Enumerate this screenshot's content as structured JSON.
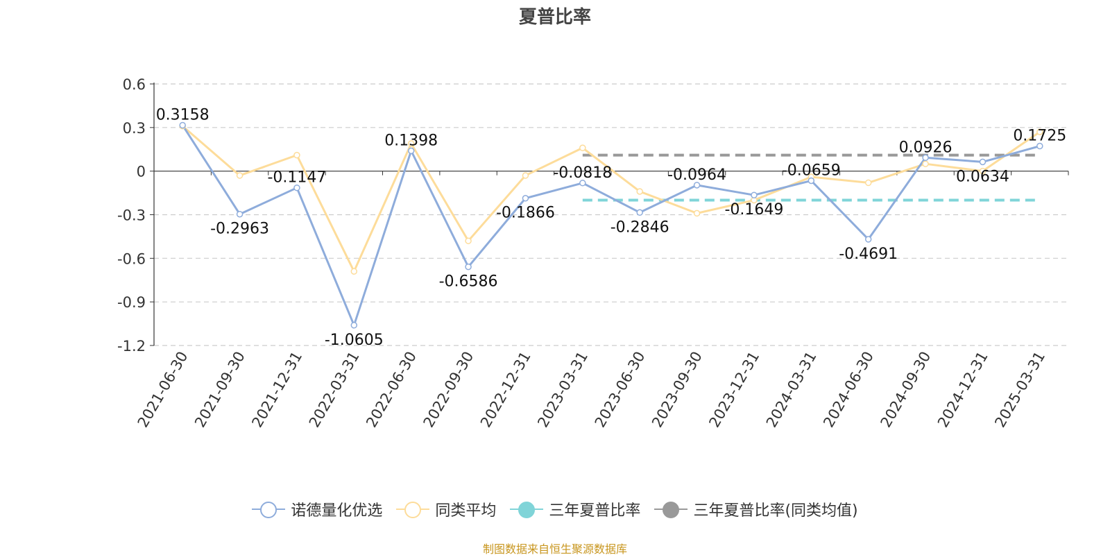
{
  "chart_data": {
    "type": "line",
    "title": "夏普比率",
    "categories": [
      "2021-06-30",
      "2021-09-30",
      "2021-12-31",
      "2022-03-31",
      "2022-06-30",
      "2022-09-30",
      "2022-12-31",
      "2023-03-31",
      "2023-06-30",
      "2023-09-30",
      "2023-12-31",
      "2024-03-31",
      "2024-06-30",
      "2024-09-30",
      "2024-12-31",
      "2025-03-31"
    ],
    "y_ticks": [
      "0.6",
      "0.3",
      "0",
      "-0.3",
      "-0.6",
      "-0.9",
      "-1.2"
    ],
    "ylim": [
      -1.2,
      0.6
    ],
    "grid": true,
    "legend_position": "bottom",
    "series": [
      {
        "name": "诺德量化优选",
        "color": "#8eacdb",
        "values": [
          0.3158,
          -0.2963,
          -0.1147,
          -1.0605,
          0.1398,
          -0.6586,
          -0.1866,
          -0.0818,
          -0.2846,
          -0.0964,
          -0.1649,
          -0.0659,
          -0.4691,
          0.0926,
          0.0634,
          0.1725
        ],
        "labels": [
          "0.3158",
          "-0.2963",
          "-0.1147",
          "-1.0605",
          "0.1398",
          "-0.6586",
          "-0.1866",
          "-0.0818",
          "-0.2846",
          "-0.0964",
          "-0.1649",
          "-0.0659",
          "-0.4691",
          "0.0926",
          "0.0634",
          "0.1725"
        ]
      },
      {
        "name": "同类平均",
        "color": "#fddc9a",
        "values": [
          0.31,
          -0.03,
          0.11,
          -0.69,
          0.19,
          -0.48,
          -0.03,
          0.16,
          -0.14,
          -0.29,
          -0.2,
          -0.04,
          -0.08,
          0.05,
          0.0,
          0.27
        ]
      }
    ],
    "reference_lines": [
      {
        "name": "三年夏普比率",
        "color": "#80d4d8",
        "value": -0.2,
        "from_category": "2023-03-31",
        "to_category": "2025-03-31"
      },
      {
        "name": "三年夏普比率(同类均值)",
        "color": "#999999",
        "value": 0.11,
        "from_category": "2023-03-31",
        "to_category": "2025-03-31"
      }
    ]
  },
  "legend": {
    "items": [
      {
        "label": "诺德量化优选",
        "color": "#8eacdb",
        "filled": false
      },
      {
        "label": "同类平均",
        "color": "#fddc9a",
        "filled": false
      },
      {
        "label": "三年夏普比率",
        "color": "#80d4d8",
        "filled": true
      },
      {
        "label": "三年夏普比率(同类均值)",
        "color": "#999999",
        "filled": true
      }
    ]
  },
  "source_note": "制图数据来自恒生聚源数据库"
}
